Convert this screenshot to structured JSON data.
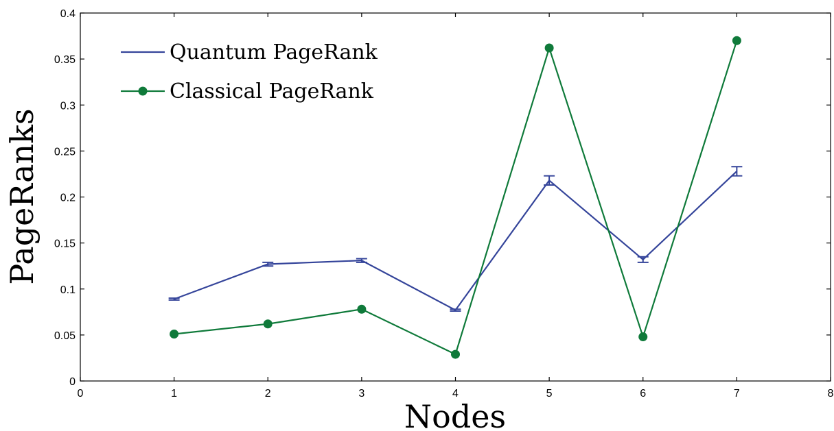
{
  "chart_data": {
    "type": "line",
    "xlabel": "Nodes",
    "ylabel": "PageRanks",
    "xlim": [
      0,
      8
    ],
    "ylim": [
      0,
      0.4
    ],
    "xticks": [
      0,
      1,
      2,
      3,
      4,
      5,
      6,
      7,
      8
    ],
    "yticks": [
      0,
      0.05,
      0.1,
      0.15,
      0.2,
      0.25,
      0.3,
      0.35,
      0.4
    ],
    "xtick_labels": [
      "0",
      "1",
      "2",
      "3",
      "4",
      "5",
      "6",
      "7",
      "8"
    ],
    "ytick_labels": [
      "0",
      "0.05",
      "0.1",
      "0.15",
      "0.2",
      "0.25",
      "0.3",
      "0.35",
      "0.4"
    ],
    "grid": false,
    "legend_position": "top-left",
    "x": [
      1,
      2,
      3,
      4,
      5,
      6,
      7
    ],
    "series": [
      {
        "name": "Quantum PageRank",
        "color": "#34449a",
        "marker": "none",
        "values": [
          0.089,
          0.127,
          0.131,
          0.077,
          0.218,
          0.132,
          0.228
        ],
        "error": [
          0.001,
          0.002,
          0.002,
          0.001,
          0.005,
          0.003,
          0.005
        ]
      },
      {
        "name": "Classical PageRank",
        "color": "#0f7a3a",
        "marker": "circle",
        "values": [
          0.051,
          0.062,
          0.078,
          0.029,
          0.362,
          0.048,
          0.37
        ]
      }
    ]
  }
}
